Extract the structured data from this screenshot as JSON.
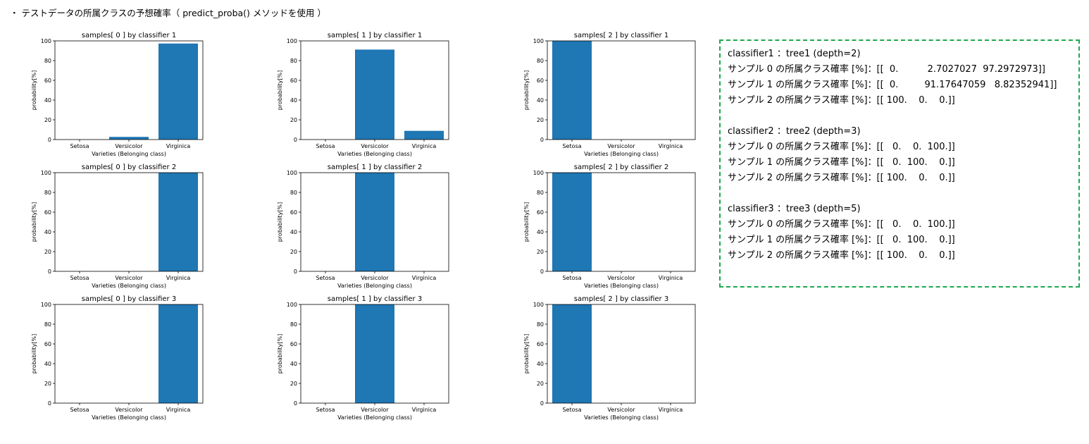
{
  "heading": "・ テストデータの所属クラスの予想確率（ predict_proba() メソッドを使用 ）",
  "chart_data": [
    {
      "type": "bar",
      "title": "samples[ 0 ] by classifier 1",
      "categories": [
        "Setosa",
        "Versicolor",
        "Virginica"
      ],
      "values": [
        0,
        2.7,
        97.3
      ],
      "xlabel": "Varieties (Belonging class)",
      "ylabel": "probability[%]",
      "ylim": [
        0,
        100
      ],
      "yticks": [
        "0",
        "20",
        "40",
        "60",
        "80",
        "100"
      ],
      "grid": false
    },
    {
      "type": "bar",
      "title": "samples[ 1 ] by classifier 1",
      "categories": [
        "Setosa",
        "Versicolor",
        "Virginica"
      ],
      "values": [
        0,
        91.18,
        8.82
      ],
      "xlabel": "Varieties (Belonging class)",
      "ylabel": "probability[%]",
      "ylim": [
        0,
        100
      ],
      "yticks": [
        "0",
        "20",
        "40",
        "60",
        "80",
        "100"
      ],
      "grid": false
    },
    {
      "type": "bar",
      "title": "samples[ 2 ] by classifier 1",
      "categories": [
        "Setosa",
        "Versicolor",
        "Virginica"
      ],
      "values": [
        100,
        0,
        0
      ],
      "xlabel": "Varieties (Belonging class)",
      "ylabel": "probability[%]",
      "ylim": [
        0,
        100
      ],
      "yticks": [
        "0",
        "20",
        "40",
        "60",
        "80",
        "100"
      ],
      "grid": false
    },
    {
      "type": "bar",
      "title": "samples[ 0 ] by classifier 2",
      "categories": [
        "Setosa",
        "Versicolor",
        "Virginica"
      ],
      "values": [
        0,
        0,
        100
      ],
      "xlabel": "Varieties (Belonging class)",
      "ylabel": "probability[%]",
      "ylim": [
        0,
        100
      ],
      "yticks": [
        "0",
        "20",
        "40",
        "60",
        "80",
        "100"
      ],
      "grid": false
    },
    {
      "type": "bar",
      "title": "samples[ 1 ] by classifier 2",
      "categories": [
        "Setosa",
        "Versicolor",
        "Virginica"
      ],
      "values": [
        0,
        100,
        0
      ],
      "xlabel": "Varieties (Belonging class)",
      "ylabel": "probability[%]",
      "ylim": [
        0,
        100
      ],
      "yticks": [
        "0",
        "20",
        "40",
        "60",
        "80",
        "100"
      ],
      "grid": false
    },
    {
      "type": "bar",
      "title": "samples[ 2 ] by classifier 2",
      "categories": [
        "Setosa",
        "Versicolor",
        "Virginica"
      ],
      "values": [
        100,
        0,
        0
      ],
      "xlabel": "Varieties (Belonging class)",
      "ylabel": "probability[%]",
      "ylim": [
        0,
        100
      ],
      "yticks": [
        "0",
        "20",
        "40",
        "60",
        "80",
        "100"
      ],
      "grid": false
    },
    {
      "type": "bar",
      "title": "samples[ 0 ] by classifier 3",
      "categories": [
        "Setosa",
        "Versicolor",
        "Virginica"
      ],
      "values": [
        0,
        0,
        100
      ],
      "xlabel": "Varieties (Belonging class)",
      "ylabel": "probability[%]",
      "ylim": [
        0,
        100
      ],
      "yticks": [
        "0",
        "20",
        "40",
        "60",
        "80",
        "100"
      ],
      "grid": false
    },
    {
      "type": "bar",
      "title": "samples[ 1 ] by classifier 3",
      "categories": [
        "Setosa",
        "Versicolor",
        "Virginica"
      ],
      "values": [
        0,
        100,
        0
      ],
      "xlabel": "Varieties (Belonging class)",
      "ylabel": "probability[%]",
      "ylim": [
        0,
        100
      ],
      "yticks": [
        "0",
        "20",
        "40",
        "60",
        "80",
        "100"
      ],
      "grid": false
    },
    {
      "type": "bar",
      "title": "samples[ 2 ] by classifier 3",
      "categories": [
        "Setosa",
        "Versicolor",
        "Virginica"
      ],
      "values": [
        100,
        0,
        0
      ],
      "xlabel": "Varieties (Belonging class)",
      "ylabel": "probability[%]",
      "ylim": [
        0,
        100
      ],
      "yticks": [
        "0",
        "20",
        "40",
        "60",
        "80",
        "100"
      ],
      "grid": false
    }
  ],
  "colors": {
    "bar": "#1f77b4",
    "border": "#1fa84f"
  },
  "info": {
    "blocks": [
      {
        "title": "classifier1 ：tree1 (depth=2)",
        "lines": [
          "サンプル 0 の所属クラス確率 [%]：[[  0.          2.7027027  97.2972973]]",
          "サンプル 1 の所属クラス確率 [%]：[[  0.         91.17647059   8.82352941]]",
          "サンプル 2 の所属クラス確率 [%]：[[ 100.    0.    0.]]"
        ]
      },
      {
        "title": "classifier2 ：tree2 (depth=3)",
        "lines": [
          "サンプル 0 の所属クラス確率 [%]：[[   0.    0.  100.]]",
          "サンプル 1 の所属クラス確率 [%]：[[   0.  100.    0.]]",
          "サンプル 2 の所属クラス確率 [%]：[[ 100.    0.    0.]]"
        ]
      },
      {
        "title": "classifier3 ：tree3 (depth=5)",
        "lines": [
          "サンプル 0 の所属クラス確率 [%]：[[   0.    0.  100.]]",
          "サンプル 1 の所属クラス確率 [%]：[[   0.  100.    0.]]",
          "サンプル 2 の所属クラス確率 [%]：[[ 100.    0.    0.]]"
        ]
      }
    ]
  }
}
